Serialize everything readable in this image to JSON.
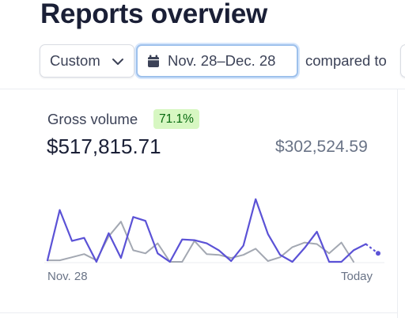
{
  "header": {
    "title": "Reports overview"
  },
  "filters": {
    "range_label": "Custom",
    "date_label": "Nov. 28–Dec. 28",
    "compared_label": "compared to"
  },
  "metric": {
    "label": "Gross volume",
    "change": "71.1%",
    "value": "$517,815.71",
    "compare_value": "$302,524.59"
  },
  "colors": {
    "current_series": "#5b52d6",
    "previous_series": "#a3a8b2",
    "badge_bg": "#d7f7c2",
    "badge_text": "#05690d",
    "date_focus": "#9ec1ec"
  },
  "chart_data": {
    "type": "line",
    "x_start_label": "Nov. 28",
    "x_end_label": "Today",
    "series": [
      {
        "values": [
          3,
          68,
          28,
          32,
          1,
          38,
          6,
          59,
          54,
          12,
          1,
          30,
          29,
          25,
          16,
          2,
          22,
          82,
          37,
          10,
          1,
          19,
          40,
          1,
          1,
          16,
          24,
          12
        ]
      },
      {
        "values": [
          3,
          3,
          7,
          11,
          3,
          34,
          53,
          16,
          12,
          25,
          1,
          1,
          28,
          11,
          10,
          6,
          10,
          18,
          2,
          7,
          20,
          26,
          24,
          12,
          26,
          1
        ]
      }
    ],
    "ylim": [
      0,
      90
    ]
  },
  "icons": {
    "chevron": "chevron-down-icon",
    "calendar": "calendar-icon"
  }
}
